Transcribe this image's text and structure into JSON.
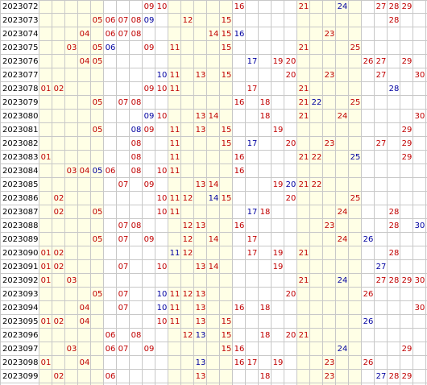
{
  "colors": {
    "red": "#c00000",
    "blue": "#0000a0",
    "grid": "#c8c8c8",
    "shade": "#ffffe6",
    "text": "#000000"
  },
  "shaded_numbers": [
    1,
    2,
    3,
    4,
    5,
    11,
    12,
    13,
    14,
    15,
    21,
    22,
    23,
    24,
    25
  ],
  "rows": [
    {
      "issue": "2023072",
      "nums": [
        {
          "n": "09",
          "c": "red"
        },
        {
          "n": "10",
          "c": "red"
        },
        {
          "n": "16",
          "c": "red"
        },
        {
          "n": "21",
          "c": "red"
        },
        {
          "n": "24",
          "c": "blue"
        },
        {
          "n": "27",
          "c": "red"
        },
        {
          "n": "28",
          "c": "red"
        },
        {
          "n": "29",
          "c": "red"
        }
      ]
    },
    {
      "issue": "2023073",
      "nums": [
        {
          "n": "05",
          "c": "red"
        },
        {
          "n": "06",
          "c": "red"
        },
        {
          "n": "07",
          "c": "red"
        },
        {
          "n": "08",
          "c": "red"
        },
        {
          "n": "09",
          "c": "blue"
        },
        {
          "n": "12",
          "c": "red"
        },
        {
          "n": "15",
          "c": "red"
        },
        {
          "n": "28",
          "c": "red"
        }
      ]
    },
    {
      "issue": "2023074",
      "nums": [
        {
          "n": "04",
          "c": "red"
        },
        {
          "n": "06",
          "c": "red"
        },
        {
          "n": "07",
          "c": "red"
        },
        {
          "n": "08",
          "c": "red"
        },
        {
          "n": "14",
          "c": "red"
        },
        {
          "n": "15",
          "c": "red"
        },
        {
          "n": "16",
          "c": "blue"
        },
        {
          "n": "23",
          "c": "red"
        }
      ]
    },
    {
      "issue": "2023075",
      "nums": [
        {
          "n": "03",
          "c": "red"
        },
        {
          "n": "05",
          "c": "red"
        },
        {
          "n": "06",
          "c": "blue"
        },
        {
          "n": "09",
          "c": "red"
        },
        {
          "n": "11",
          "c": "red"
        },
        {
          "n": "15",
          "c": "red"
        },
        {
          "n": "21",
          "c": "red"
        },
        {
          "n": "25",
          "c": "red"
        }
      ]
    },
    {
      "issue": "2023076",
      "nums": [
        {
          "n": "04",
          "c": "red"
        },
        {
          "n": "05",
          "c": "red"
        },
        {
          "n": "17",
          "c": "blue"
        },
        {
          "n": "19",
          "c": "red"
        },
        {
          "n": "20",
          "c": "red"
        },
        {
          "n": "26",
          "c": "red"
        },
        {
          "n": "27",
          "c": "red"
        },
        {
          "n": "29",
          "c": "red"
        }
      ]
    },
    {
      "issue": "2023077",
      "nums": [
        {
          "n": "10",
          "c": "blue"
        },
        {
          "n": "11",
          "c": "red"
        },
        {
          "n": "13",
          "c": "red"
        },
        {
          "n": "15",
          "c": "red"
        },
        {
          "n": "20",
          "c": "red"
        },
        {
          "n": "23",
          "c": "red"
        },
        {
          "n": "27",
          "c": "red"
        },
        {
          "n": "30",
          "c": "red"
        }
      ]
    },
    {
      "issue": "2023078",
      "nums": [
        {
          "n": "01",
          "c": "red"
        },
        {
          "n": "02",
          "c": "red"
        },
        {
          "n": "09",
          "c": "red"
        },
        {
          "n": "10",
          "c": "red"
        },
        {
          "n": "11",
          "c": "red"
        },
        {
          "n": "17",
          "c": "red"
        },
        {
          "n": "21",
          "c": "red"
        },
        {
          "n": "28",
          "c": "blue"
        }
      ]
    },
    {
      "issue": "2023079",
      "nums": [
        {
          "n": "05",
          "c": "red"
        },
        {
          "n": "07",
          "c": "red"
        },
        {
          "n": "08",
          "c": "red"
        },
        {
          "n": "16",
          "c": "red"
        },
        {
          "n": "18",
          "c": "red"
        },
        {
          "n": "21",
          "c": "red"
        },
        {
          "n": "22",
          "c": "blue"
        },
        {
          "n": "25",
          "c": "red"
        }
      ]
    },
    {
      "issue": "2023080",
      "nums": [
        {
          "n": "09",
          "c": "blue"
        },
        {
          "n": "10",
          "c": "red"
        },
        {
          "n": "13",
          "c": "red"
        },
        {
          "n": "14",
          "c": "red"
        },
        {
          "n": "18",
          "c": "red"
        },
        {
          "n": "21",
          "c": "red"
        },
        {
          "n": "24",
          "c": "red"
        },
        {
          "n": "30",
          "c": "red"
        }
      ]
    },
    {
      "issue": "2023081",
      "nums": [
        {
          "n": "05",
          "c": "red"
        },
        {
          "n": "08",
          "c": "blue"
        },
        {
          "n": "09",
          "c": "red"
        },
        {
          "n": "11",
          "c": "red"
        },
        {
          "n": "13",
          "c": "red"
        },
        {
          "n": "15",
          "c": "red"
        },
        {
          "n": "19",
          "c": "red"
        },
        {
          "n": "29",
          "c": "red"
        }
      ]
    },
    {
      "issue": "2023082",
      "nums": [
        {
          "n": "08",
          "c": "red"
        },
        {
          "n": "11",
          "c": "red"
        },
        {
          "n": "15",
          "c": "red"
        },
        {
          "n": "17",
          "c": "blue"
        },
        {
          "n": "20",
          "c": "red"
        },
        {
          "n": "23",
          "c": "red"
        },
        {
          "n": "27",
          "c": "red"
        },
        {
          "n": "29",
          "c": "red"
        }
      ]
    },
    {
      "issue": "2023083",
      "nums": [
        {
          "n": "01",
          "c": "red"
        },
        {
          "n": "08",
          "c": "red"
        },
        {
          "n": "11",
          "c": "red"
        },
        {
          "n": "16",
          "c": "red"
        },
        {
          "n": "21",
          "c": "red"
        },
        {
          "n": "22",
          "c": "red"
        },
        {
          "n": "25",
          "c": "blue"
        },
        {
          "n": "29",
          "c": "red"
        }
      ]
    },
    {
      "issue": "2023084",
      "nums": [
        {
          "n": "03",
          "c": "red"
        },
        {
          "n": "04",
          "c": "red"
        },
        {
          "n": "05",
          "c": "blue"
        },
        {
          "n": "06",
          "c": "red"
        },
        {
          "n": "08",
          "c": "red"
        },
        {
          "n": "10",
          "c": "red"
        },
        {
          "n": "11",
          "c": "red"
        },
        {
          "n": "16",
          "c": "red"
        }
      ]
    },
    {
      "issue": "2023085",
      "nums": [
        {
          "n": "07",
          "c": "red"
        },
        {
          "n": "09",
          "c": "red"
        },
        {
          "n": "13",
          "c": "red"
        },
        {
          "n": "14",
          "c": "red"
        },
        {
          "n": "19",
          "c": "red"
        },
        {
          "n": "20",
          "c": "blue"
        },
        {
          "n": "21",
          "c": "red"
        },
        {
          "n": "22",
          "c": "red"
        }
      ]
    },
    {
      "issue": "2023086",
      "nums": [
        {
          "n": "02",
          "c": "red"
        },
        {
          "n": "10",
          "c": "red"
        },
        {
          "n": "11",
          "c": "red"
        },
        {
          "n": "12",
          "c": "red"
        },
        {
          "n": "14",
          "c": "blue"
        },
        {
          "n": "15",
          "c": "red"
        },
        {
          "n": "20",
          "c": "red"
        },
        {
          "n": "25",
          "c": "red"
        }
      ]
    },
    {
      "issue": "2023087",
      "nums": [
        {
          "n": "02",
          "c": "red"
        },
        {
          "n": "05",
          "c": "red"
        },
        {
          "n": "10",
          "c": "red"
        },
        {
          "n": "11",
          "c": "red"
        },
        {
          "n": "17",
          "c": "blue"
        },
        {
          "n": "18",
          "c": "red"
        },
        {
          "n": "24",
          "c": "red"
        },
        {
          "n": "28",
          "c": "red"
        }
      ]
    },
    {
      "issue": "2023088",
      "nums": [
        {
          "n": "07",
          "c": "red"
        },
        {
          "n": "08",
          "c": "red"
        },
        {
          "n": "12",
          "c": "red"
        },
        {
          "n": "13",
          "c": "red"
        },
        {
          "n": "16",
          "c": "red"
        },
        {
          "n": "23",
          "c": "red"
        },
        {
          "n": "28",
          "c": "red"
        },
        {
          "n": "30",
          "c": "blue"
        }
      ]
    },
    {
      "issue": "2023089",
      "nums": [
        {
          "n": "05",
          "c": "red"
        },
        {
          "n": "07",
          "c": "red"
        },
        {
          "n": "09",
          "c": "red"
        },
        {
          "n": "12",
          "c": "red"
        },
        {
          "n": "14",
          "c": "red"
        },
        {
          "n": "17",
          "c": "red"
        },
        {
          "n": "24",
          "c": "red"
        },
        {
          "n": "26",
          "c": "blue"
        }
      ]
    },
    {
      "issue": "2023090",
      "nums": [
        {
          "n": "01",
          "c": "red"
        },
        {
          "n": "02",
          "c": "red"
        },
        {
          "n": "11",
          "c": "blue"
        },
        {
          "n": "12",
          "c": "red"
        },
        {
          "n": "17",
          "c": "red"
        },
        {
          "n": "19",
          "c": "red"
        },
        {
          "n": "21",
          "c": "red"
        },
        {
          "n": "28",
          "c": "red"
        }
      ]
    },
    {
      "issue": "2023091",
      "nums": [
        {
          "n": "01",
          "c": "red"
        },
        {
          "n": "02",
          "c": "red"
        },
        {
          "n": "07",
          "c": "red"
        },
        {
          "n": "10",
          "c": "red"
        },
        {
          "n": "13",
          "c": "red"
        },
        {
          "n": "14",
          "c": "red"
        },
        {
          "n": "19",
          "c": "red"
        },
        {
          "n": "27",
          "c": "blue"
        }
      ]
    },
    {
      "issue": "2023092",
      "nums": [
        {
          "n": "01",
          "c": "red"
        },
        {
          "n": "03",
          "c": "red"
        },
        {
          "n": "21",
          "c": "red"
        },
        {
          "n": "24",
          "c": "blue"
        },
        {
          "n": "27",
          "c": "red"
        },
        {
          "n": "28",
          "c": "red"
        },
        {
          "n": "29",
          "c": "red"
        },
        {
          "n": "30",
          "c": "red"
        }
      ]
    },
    {
      "issue": "2023093",
      "nums": [
        {
          "n": "05",
          "c": "red"
        },
        {
          "n": "07",
          "c": "red"
        },
        {
          "n": "10",
          "c": "blue"
        },
        {
          "n": "11",
          "c": "red"
        },
        {
          "n": "12",
          "c": "red"
        },
        {
          "n": "13",
          "c": "red"
        },
        {
          "n": "20",
          "c": "red"
        },
        {
          "n": "26",
          "c": "red"
        }
      ]
    },
    {
      "issue": "2023094",
      "nums": [
        {
          "n": "04",
          "c": "red"
        },
        {
          "n": "07",
          "c": "red"
        },
        {
          "n": "10",
          "c": "blue"
        },
        {
          "n": "11",
          "c": "red"
        },
        {
          "n": "13",
          "c": "red"
        },
        {
          "n": "16",
          "c": "red"
        },
        {
          "n": "18",
          "c": "red"
        },
        {
          "n": "30",
          "c": "red"
        }
      ]
    },
    {
      "issue": "2023095",
      "nums": [
        {
          "n": "01",
          "c": "red"
        },
        {
          "n": "02",
          "c": "red"
        },
        {
          "n": "04",
          "c": "red"
        },
        {
          "n": "10",
          "c": "red"
        },
        {
          "n": "11",
          "c": "red"
        },
        {
          "n": "13",
          "c": "red"
        },
        {
          "n": "15",
          "c": "red"
        },
        {
          "n": "26",
          "c": "blue"
        }
      ]
    },
    {
      "issue": "2023096",
      "nums": [
        {
          "n": "06",
          "c": "red"
        },
        {
          "n": "08",
          "c": "red"
        },
        {
          "n": "12",
          "c": "red"
        },
        {
          "n": "13",
          "c": "blue"
        },
        {
          "n": "15",
          "c": "red"
        },
        {
          "n": "18",
          "c": "red"
        },
        {
          "n": "20",
          "c": "red"
        },
        {
          "n": "21",
          "c": "red"
        }
      ]
    },
    {
      "issue": "2023097",
      "nums": [
        {
          "n": "03",
          "c": "red"
        },
        {
          "n": "06",
          "c": "red"
        },
        {
          "n": "07",
          "c": "red"
        },
        {
          "n": "09",
          "c": "red"
        },
        {
          "n": "15",
          "c": "red"
        },
        {
          "n": "16",
          "c": "red"
        },
        {
          "n": "24",
          "c": "blue"
        },
        {
          "n": "29",
          "c": "red"
        }
      ]
    },
    {
      "issue": "2023098",
      "nums": [
        {
          "n": "01",
          "c": "red"
        },
        {
          "n": "04",
          "c": "red"
        },
        {
          "n": "13",
          "c": "blue"
        },
        {
          "n": "16",
          "c": "red"
        },
        {
          "n": "17",
          "c": "red"
        },
        {
          "n": "19",
          "c": "red"
        },
        {
          "n": "23",
          "c": "red"
        },
        {
          "n": "26",
          "c": "red"
        }
      ]
    },
    {
      "issue": "2023099",
      "nums": [
        {
          "n": "02",
          "c": "red"
        },
        {
          "n": "06",
          "c": "red"
        },
        {
          "n": "13",
          "c": "red"
        },
        {
          "n": "18",
          "c": "red"
        },
        {
          "n": "23",
          "c": "red"
        },
        {
          "n": "27",
          "c": "blue"
        },
        {
          "n": "28",
          "c": "red"
        },
        {
          "n": "29",
          "c": "red"
        }
      ]
    }
  ]
}
